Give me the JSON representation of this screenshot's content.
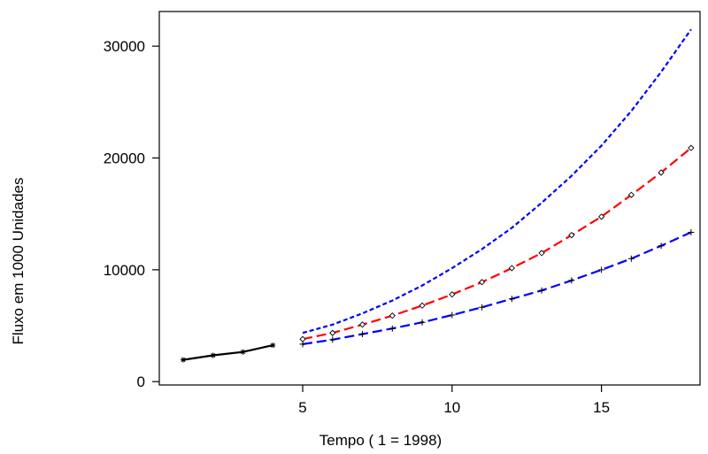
{
  "chart_data": {
    "type": "line",
    "title": "",
    "xlabel": "Tempo ( 1 = 1998)",
    "ylabel": "Fluxo em 1000 Unidades",
    "xlim": [
      0.2,
      18.3
    ],
    "ylim": [
      -300,
      33100
    ],
    "x_ticks": [
      5,
      10,
      15
    ],
    "x_tick_labels": [
      "5",
      "10",
      "15"
    ],
    "y_ticks": [
      0,
      10000,
      20000,
      30000
    ],
    "y_tick_labels": [
      "0",
      "10000",
      "20000",
      "30000"
    ],
    "grid": false,
    "legend": "none",
    "series": [
      {
        "color": "#000000",
        "line_style": "solid",
        "marker": "asterisk",
        "x": [
          1,
          2,
          3,
          4
        ],
        "y": [
          1950,
          2350,
          2650,
          3250
        ]
      },
      {
        "color": "#ff0000",
        "line_style": "dashed",
        "marker": "diamond",
        "x": [
          5,
          6,
          7,
          8,
          9,
          10,
          11,
          12,
          13,
          14,
          15,
          16,
          17,
          18
        ],
        "y": [
          3800,
          4350,
          5100,
          5900,
          6800,
          7800,
          8900,
          10150,
          11500,
          13100,
          14750,
          16700,
          18700,
          20900
        ]
      },
      {
        "color": "#0000ff",
        "line_style": "dotted",
        "marker": "none",
        "x": [
          5,
          6,
          7,
          8,
          9,
          10,
          11,
          12,
          13,
          14,
          15,
          16,
          17,
          18
        ],
        "y": [
          4350,
          5100,
          6100,
          7250,
          8600,
          10150,
          11850,
          13750,
          16000,
          18400,
          21100,
          24200,
          27700,
          31500
        ]
      },
      {
        "color": "#0000ff",
        "line_style": "dashed",
        "marker": "plus",
        "x": [
          5,
          6,
          7,
          8,
          9,
          10,
          11,
          12,
          13,
          14,
          15,
          16,
          17,
          18
        ],
        "y": [
          3350,
          3750,
          4250,
          4750,
          5300,
          5950,
          6650,
          7400,
          8150,
          9050,
          10000,
          11000,
          12150,
          13350
        ]
      }
    ]
  }
}
